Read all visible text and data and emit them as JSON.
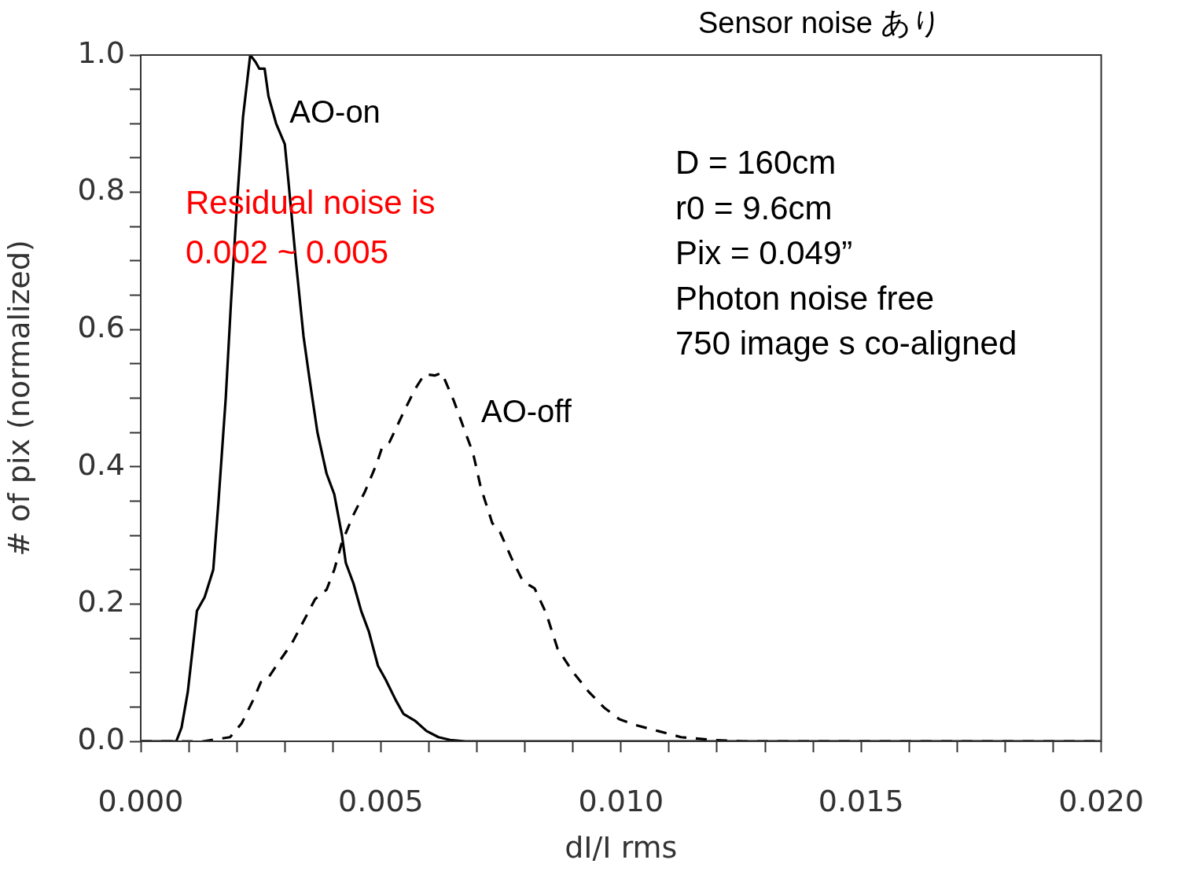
{
  "chart_data": {
    "type": "line",
    "title": "Sensor noise あり",
    "xlabel": "dI/I rms",
    "ylabel": "# of pix (normalized)",
    "annotations": [
      "Residual noise is\n0.002 ~ 0.005",
      "D = 160cm\nr0 = 9.6cm\nPix = 0.049”\nPhoton noise free\n750 image s co-aligned"
    ],
    "xlim": [
      0,
      0.02
    ],
    "ylim": [
      0,
      1.0
    ],
    "xticks": [
      {
        "value": 0,
        "label": "0.000"
      },
      {
        "value": 0.001,
        "label": null
      },
      {
        "value": 0.002,
        "label": null
      },
      {
        "value": 0.003,
        "label": null
      },
      {
        "value": 0.004,
        "label": null
      },
      {
        "value": 0.005,
        "label": "0.005"
      },
      {
        "value": 0.006,
        "label": null
      },
      {
        "value": 0.007,
        "label": null
      },
      {
        "value": 0.008,
        "label": null
      },
      {
        "value": 0.009,
        "label": null
      },
      {
        "value": 0.01,
        "label": "0.010"
      },
      {
        "value": 0.011,
        "label": null
      },
      {
        "value": 0.012,
        "label": null
      },
      {
        "value": 0.013,
        "label": null
      },
      {
        "value": 0.014,
        "label": null
      },
      {
        "value": 0.015,
        "label": "0.015"
      },
      {
        "value": 0.016,
        "label": null
      },
      {
        "value": 0.017,
        "label": null
      },
      {
        "value": 0.018,
        "label": null
      },
      {
        "value": 0.019,
        "label": null
      },
      {
        "value": 0.02,
        "label": "0.020"
      }
    ],
    "yticks": [
      {
        "value": 0,
        "label": "0.0"
      },
      {
        "value": 0.05,
        "label": null
      },
      {
        "value": 0.1,
        "label": null
      },
      {
        "value": 0.15,
        "label": null
      },
      {
        "value": 0.2,
        "label": "0.2"
      },
      {
        "value": 0.25,
        "label": null
      },
      {
        "value": 0.3,
        "label": null
      },
      {
        "value": 0.35,
        "label": null
      },
      {
        "value": 0.4,
        "label": "0.4"
      },
      {
        "value": 0.45,
        "label": null
      },
      {
        "value": 0.5,
        "label": null
      },
      {
        "value": 0.55,
        "label": null
      },
      {
        "value": 0.6,
        "label": "0.6"
      },
      {
        "value": 0.65,
        "label": null
      },
      {
        "value": 0.7,
        "label": null
      },
      {
        "value": 0.75,
        "label": null
      },
      {
        "value": 0.8,
        "label": "0.8"
      },
      {
        "value": 0.85,
        "label": null
      },
      {
        "value": 0.9,
        "label": null
      },
      {
        "value": 0.95,
        "label": null
      },
      {
        "value": 1.0,
        "label": "1.0"
      }
    ],
    "grid": false,
    "legend": false,
    "marker": "none",
    "series": [
      {
        "name": "AO-on",
        "color": "#000000",
        "line_style": "solid",
        "x": [
          0,
          0.00074,
          0.00085,
          0.00098,
          0.00117,
          0.00133,
          0.00151,
          0.00162,
          0.00177,
          0.00188,
          0.00201,
          0.00213,
          0.00228,
          0.00239,
          0.00247,
          0.00258,
          0.00266,
          0.00282,
          0.003,
          0.00307,
          0.00323,
          0.00339,
          0.00351,
          0.00368,
          0.00387,
          0.00403,
          0.00419,
          0.00427,
          0.00443,
          0.00459,
          0.00475,
          0.00494,
          0.0051,
          0.00531,
          0.00547,
          0.00571,
          0.00595,
          0.0062,
          0.00644,
          0.00676,
          0.02
        ],
        "values": [
          0,
          0,
          0.02,
          0.072,
          0.19,
          0.21,
          0.25,
          0.35,
          0.5,
          0.64,
          0.79,
          0.91,
          1.0,
          0.99,
          0.98,
          0.98,
          0.94,
          0.9,
          0.87,
          0.82,
          0.7,
          0.59,
          0.53,
          0.45,
          0.39,
          0.36,
          0.3,
          0.26,
          0.23,
          0.19,
          0.16,
          0.11,
          0.09,
          0.06,
          0.04,
          0.03,
          0.015,
          0.006,
          0.002,
          0,
          0
        ]
      },
      {
        "name": "AO-off",
        "color": "#000000",
        "line_style": "dashed",
        "x": [
          0,
          0.0013,
          0.00186,
          0.0021,
          0.00234,
          0.0025,
          0.00266,
          0.0029,
          0.00315,
          0.00339,
          0.00363,
          0.00387,
          0.00403,
          0.00419,
          0.00443,
          0.00467,
          0.00491,
          0.00502,
          0.00518,
          0.00547,
          0.00571,
          0.00591,
          0.00612,
          0.00627,
          0.00652,
          0.00676,
          0.00692,
          0.00708,
          0.00732,
          0.00748,
          0.00772,
          0.00796,
          0.0082,
          0.00844,
          0.00868,
          0.009,
          0.00933,
          0.00965,
          0.00997,
          0.01029,
          0.01077,
          0.01125,
          0.0119,
          0.01254,
          0.02
        ],
        "values": [
          0,
          0,
          0.006,
          0.026,
          0.06,
          0.086,
          0.093,
          0.118,
          0.143,
          0.175,
          0.207,
          0.221,
          0.25,
          0.29,
          0.33,
          0.364,
          0.404,
          0.427,
          0.436,
          0.479,
          0.513,
          0.535,
          0.533,
          0.537,
          0.496,
          0.45,
          0.42,
          0.37,
          0.318,
          0.305,
          0.267,
          0.233,
          0.223,
          0.187,
          0.135,
          0.101,
          0.072,
          0.049,
          0.032,
          0.024,
          0.015,
          0.006,
          0.002,
          0,
          0
        ]
      }
    ]
  }
}
